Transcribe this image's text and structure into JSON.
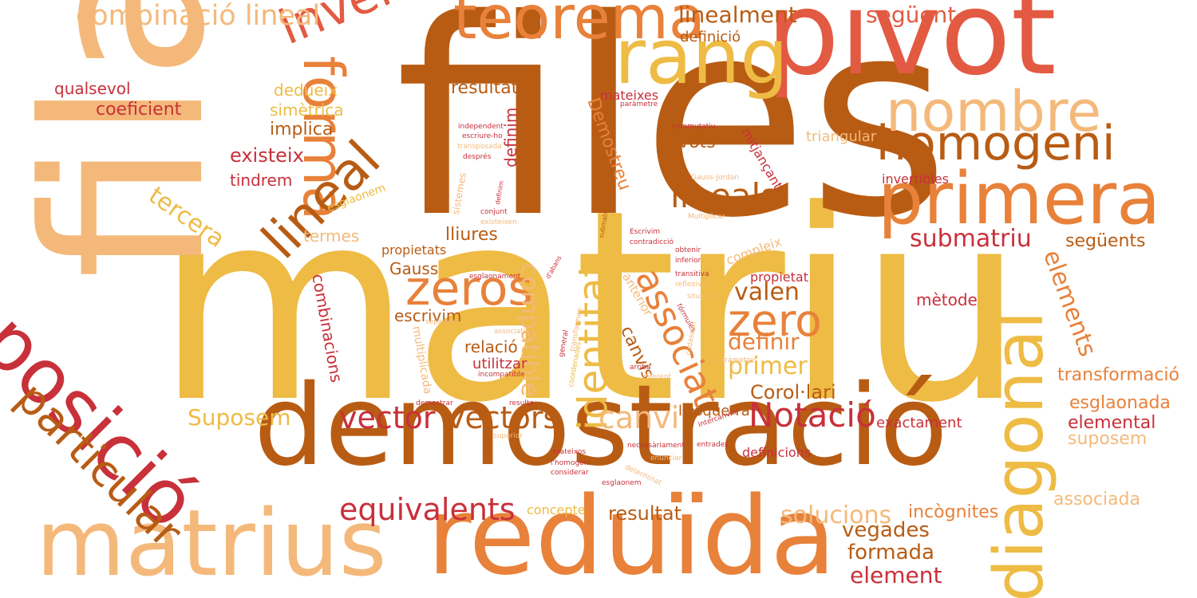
{
  "palette": {
    "c1": "#b85c14",
    "c2": "#eebb44",
    "c3": "#e8813a",
    "c4": "#f4b97a",
    "c5": "#c8303a",
    "c6": "#e35a42"
  },
  "words": [
    "matriu",
    "files",
    "fila",
    "demostració",
    "reduïda",
    "matrius",
    "pivot",
    "posició",
    "rang",
    "teorema",
    "primera",
    "homogeni",
    "nombre",
    "inversa",
    "forma",
    "lineal",
    "diagonal",
    "particular",
    "combinació lineal",
    "zeros",
    "lineals",
    "zero",
    "vector",
    "vectors",
    "Notació",
    "equivalents",
    "identitat",
    "associat",
    "compatible",
    "elements",
    "canvi",
    "submatriu",
    "linealment",
    "següent",
    "valen",
    "definir",
    "primer",
    "Corol·lari",
    "Suposem",
    "solucions",
    "vegades",
    "formada",
    "element",
    "resultat",
    "incògnites",
    "associada",
    "suposem",
    "elemental",
    "esglaonada",
    "transformació",
    "següents",
    "exactament",
    "mètode",
    "propietat",
    "tercera",
    "existeix",
    "tindrem",
    "implica",
    "simètrica",
    "dedueix",
    "coeficient",
    "qualsevol",
    "resultats",
    "definició",
    "mateixes",
    "pivots",
    "lliures",
    "termes",
    "Gauss",
    "propietats",
    "escrivim",
    "relació",
    "utilitzar",
    "combinacions",
    "definim",
    "canvis",
    "Demostreu",
    "mitjançant",
    "triangular",
    "invertibles",
    "compleix",
    "l'esquerra",
    "definicions",
    "concepte",
    "esglaonem",
    "multiplicada",
    "anterior",
    "independent",
    "escriure-ho",
    "transposada",
    "després",
    "sistemes",
    "conjunt",
    "existeixen",
    "paràmetre",
    "commutatiu",
    "Gauss-Jordan",
    "Multiplicar",
    "Escrivim",
    "contradicció",
    "obtenir",
    "inferior",
    "transitiva",
    "reflexiva",
    "situació",
    "esglaonament",
    "separem",
    "fórmules",
    "associativa",
    "general",
    "transformen",
    "paràmetres",
    "arriba",
    "diferent",
    "coordenades",
    "cadascun",
    "demostrar",
    "resulta",
    "superior",
    "intercanviar",
    "entrades",
    "necessàriament",
    "mateixos",
    "l'homogeni",
    "considerar",
    "enunciar",
    "determinat",
    "esglaonem",
    "incompatible",
    "d'abans",
    "submatrius",
    "definim"
  ]
}
